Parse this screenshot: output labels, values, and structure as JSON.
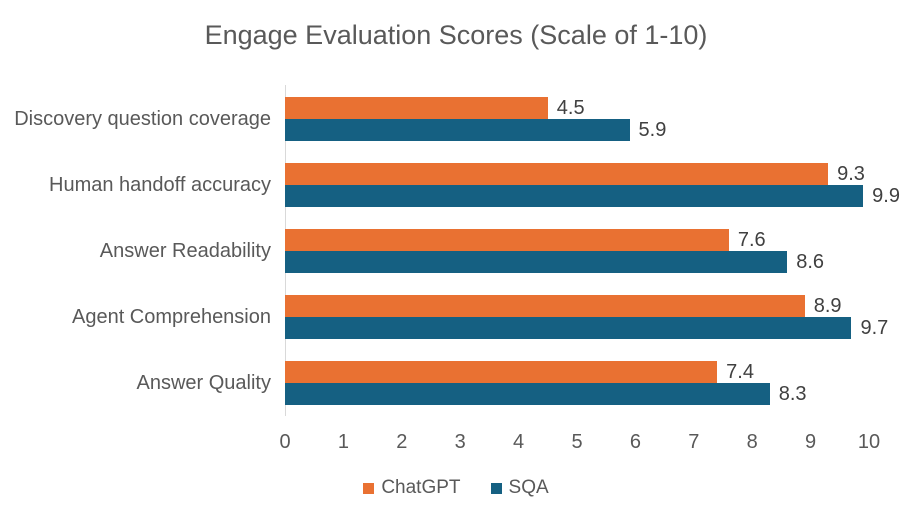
{
  "chart_data": {
    "type": "bar",
    "orientation": "horizontal",
    "title": "Engage Evaluation Scores (Scale of 1-10)",
    "categories": [
      "Discovery question coverage",
      "Human handoff accuracy",
      "Answer Readability",
      "Agent Comprehension",
      "Answer Quality"
    ],
    "series": [
      {
        "name": "ChatGPT",
        "color": "#E97132",
        "values": [
          4.5,
          9.3,
          7.6,
          8.9,
          7.4
        ]
      },
      {
        "name": "SQA",
        "color": "#156082",
        "values": [
          5.9,
          9.9,
          8.6,
          9.7,
          8.3
        ]
      }
    ],
    "xlim": [
      0,
      10
    ],
    "xticks": [
      0,
      1,
      2,
      3,
      4,
      5,
      6,
      7,
      8,
      9,
      10
    ],
    "data_labels": true,
    "grid": false,
    "legend_position": "bottom"
  },
  "colors": {
    "background": "#FFFFFF",
    "title_text": "#595959",
    "category_text": "#595959",
    "tick_text": "#595959",
    "legend_text": "#595959",
    "data_label_text": "#404040",
    "axis_line": "#D9D9D9"
  }
}
